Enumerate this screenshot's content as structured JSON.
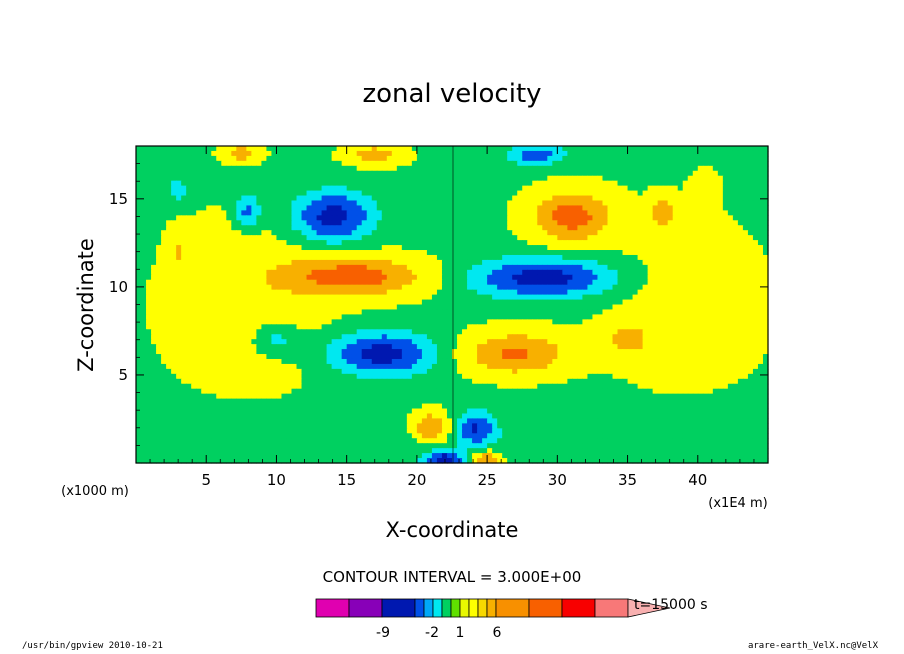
{
  "chart_data": {
    "type": "heatmap",
    "title": "zonal velocity",
    "xlabel": "X-coordinate",
    "ylabel": "Z-coordinate",
    "x_unit_label": "(x1E4 m)",
    "y_unit_label": "(x1000 m)",
    "xlim": [
      0,
      45
    ],
    "ylim": [
      0,
      18
    ],
    "x_ticks": [
      5,
      10,
      15,
      20,
      25,
      30,
      35,
      40
    ],
    "y_ticks": [
      5,
      10,
      15
    ],
    "contour_interval_text": "CONTOUR INTERVAL = 3.000E+00",
    "time_label": "t=15000 s",
    "colorbar": {
      "colors": [
        "#e000b0",
        "#8800b8",
        "#0018b0",
        "#0050e8",
        "#00a8f8",
        "#00e8f0",
        "#00d060",
        "#60e000",
        "#e8f800",
        "#ffff00",
        "#f8d800",
        "#f8b000",
        "#f89000",
        "#f86000",
        "#f80000",
        "#f87878",
        "#f8b0b0"
      ],
      "tick_labels": [
        "-9",
        "-2",
        "1",
        "6"
      ]
    },
    "field_blobs": [
      {
        "cx": 14.0,
        "cz": 14.0,
        "sx": 2.8,
        "sz": 1.4,
        "amp": -9
      },
      {
        "cx": 31.0,
        "cz": 14.0,
        "sx": 2.8,
        "sz": 1.4,
        "amp": 8
      },
      {
        "cx": 15.5,
        "cz": 10.6,
        "sx": 5.0,
        "sz": 1.1,
        "amp": 8
      },
      {
        "cx": 29.0,
        "cz": 10.5,
        "sx": 5.0,
        "sz": 1.1,
        "amp": -9
      },
      {
        "cx": 17.5,
        "cz": 6.2,
        "sx": 3.6,
        "sz": 1.2,
        "amp": -9
      },
      {
        "cx": 27.0,
        "cz": 6.2,
        "sx": 3.6,
        "sz": 1.2,
        "amp": 7
      },
      {
        "cx": 21.0,
        "cz": 2.0,
        "sx": 1.3,
        "sz": 0.9,
        "amp": 7
      },
      {
        "cx": 24.2,
        "cz": 2.0,
        "sx": 1.3,
        "sz": 0.9,
        "amp": -7
      },
      {
        "cx": 8.0,
        "cz": 14.3,
        "sx": 0.9,
        "sz": 0.9,
        "amp": -6
      },
      {
        "cx": 37.5,
        "cz": 14.3,
        "sx": 0.9,
        "sz": 0.9,
        "amp": 5
      },
      {
        "cx": 10.0,
        "cz": 7.0,
        "sx": 1.6,
        "sz": 0.9,
        "amp": -4
      },
      {
        "cx": 35.0,
        "cz": 7.0,
        "sx": 1.6,
        "sz": 0.9,
        "amp": 4
      },
      {
        "cx": 17.0,
        "cz": 17.5,
        "sx": 2.0,
        "sz": 0.6,
        "amp": 5
      },
      {
        "cx": 28.5,
        "cz": 17.5,
        "sx": 2.0,
        "sz": 0.6,
        "amp": -6
      },
      {
        "cx": 7.5,
        "cz": 17.6,
        "sx": 1.3,
        "sz": 0.5,
        "amp": 5
      },
      {
        "cx": 3.0,
        "cz": 15.5,
        "sx": 0.9,
        "sz": 0.9,
        "amp": -3
      },
      {
        "cx": 40.5,
        "cz": 15.5,
        "sx": 0.9,
        "sz": 0.9,
        "amp": 3
      },
      {
        "cx": 3.0,
        "cz": 12.0,
        "sx": 0.7,
        "sz": 1.2,
        "amp": 3
      },
      {
        "cx": 22.0,
        "cz": 0.2,
        "sx": 1.2,
        "sz": 0.5,
        "amp": -8
      },
      {
        "cx": 25.0,
        "cz": 0.2,
        "sx": 1.2,
        "sz": 0.5,
        "amp": 7
      }
    ]
  },
  "footer": {
    "left": "/usr/bin/gpview  2010-10-21",
    "right": "arare-earth_VelX.nc@VelX"
  }
}
